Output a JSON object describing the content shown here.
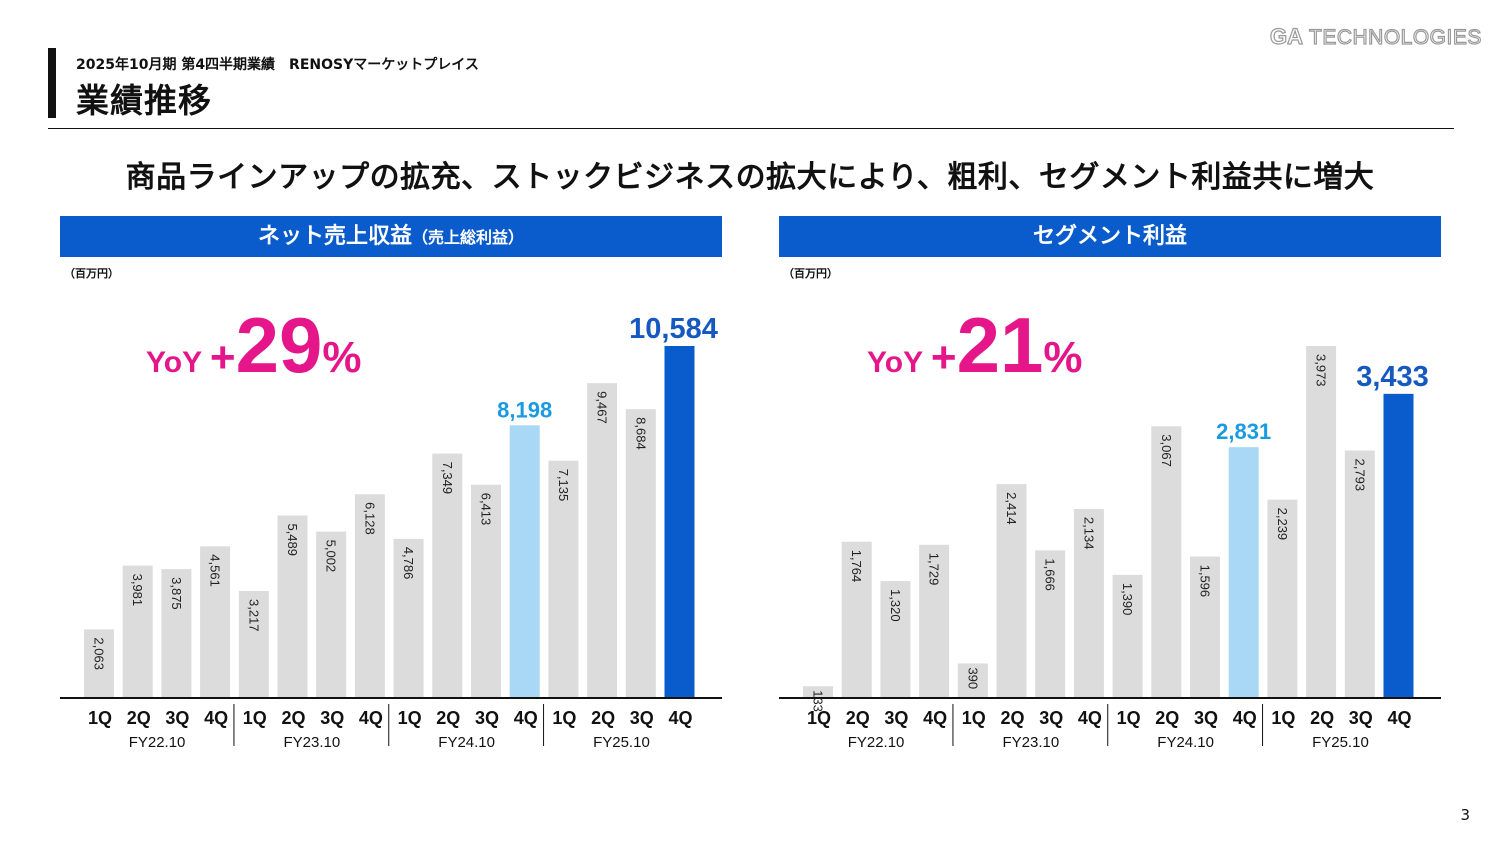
{
  "header": {
    "subtitle": "2025年10月期 第4四半期業績　RENOSYマーケットプレイス",
    "title": "業績推移",
    "logo_ga": "GA",
    "logo_tech": "TECHNOLOGIES"
  },
  "headline": "商品ラインアップの拡充、ストックビジネスの拡大により、粗利、セグメント利益共に増大",
  "colors": {
    "header_blue": "#0a5bcc",
    "bar_gray": "#dcdcdc",
    "bar_highlight_light": "#a8d8f5",
    "bar_highlight_dark": "#0a5bcc",
    "label_light_blue": "#1a9ae0",
    "label_dark_blue": "#1458c0",
    "yoy_magenta": "#e5168a"
  },
  "page_number": "3",
  "chart_data": [
    {
      "type": "bar",
      "title": "ネット売上収益",
      "title_suffix": "（売上総利益）",
      "unit": "（百万円）",
      "yoy": {
        "prefix": "YoY",
        "plus": "+",
        "value": "29",
        "suffix": "%"
      },
      "quarters": [
        "1Q",
        "2Q",
        "3Q",
        "4Q",
        "1Q",
        "2Q",
        "3Q",
        "4Q",
        "1Q",
        "2Q",
        "3Q",
        "4Q",
        "1Q",
        "2Q",
        "3Q",
        "4Q"
      ],
      "fiscal_years": [
        "FY22.10",
        "FY23.10",
        "FY24.10",
        "FY25.10"
      ],
      "values": [
        2063,
        3981,
        3875,
        4561,
        3217,
        5489,
        5002,
        6128,
        4786,
        7349,
        6413,
        8198,
        7135,
        9467,
        8684,
        10584
      ],
      "labels": [
        "2,063",
        "3,981",
        "3,875",
        "4,561",
        "3,217",
        "5,489",
        "5,002",
        "6,128",
        "4,786",
        "7,349",
        "6,413",
        "8,198",
        "7,135",
        "9,467",
        "8,684",
        "10,584"
      ],
      "highlight_light_index": 11,
      "highlight_dark_index": 15,
      "ylim": [
        0,
        10584
      ]
    },
    {
      "type": "bar",
      "title": "セグメント利益",
      "title_suffix": "",
      "unit": "（百万円）",
      "yoy": {
        "prefix": "YoY",
        "plus": "+",
        "value": "21",
        "suffix": "%"
      },
      "quarters": [
        "1Q",
        "2Q",
        "3Q",
        "4Q",
        "1Q",
        "2Q",
        "3Q",
        "4Q",
        "1Q",
        "2Q",
        "3Q",
        "4Q",
        "1Q",
        "2Q",
        "3Q",
        "4Q"
      ],
      "fiscal_years": [
        "FY22.10",
        "FY23.10",
        "FY24.10",
        "FY25.10"
      ],
      "values": [
        133,
        1764,
        1320,
        1729,
        390,
        2414,
        1666,
        2134,
        1390,
        3067,
        1596,
        2831,
        2239,
        3973,
        2793,
        3433
      ],
      "labels": [
        "133",
        "1,764",
        "1,320",
        "1,729",
        "390",
        "2,414",
        "1,666",
        "2,134",
        "1,390",
        "3,067",
        "1,596",
        "2,831",
        "2,239",
        "3,973",
        "2,793",
        "3,433"
      ],
      "highlight_light_index": 11,
      "highlight_dark_index": 15,
      "ylim": [
        0,
        3973
      ]
    }
  ]
}
